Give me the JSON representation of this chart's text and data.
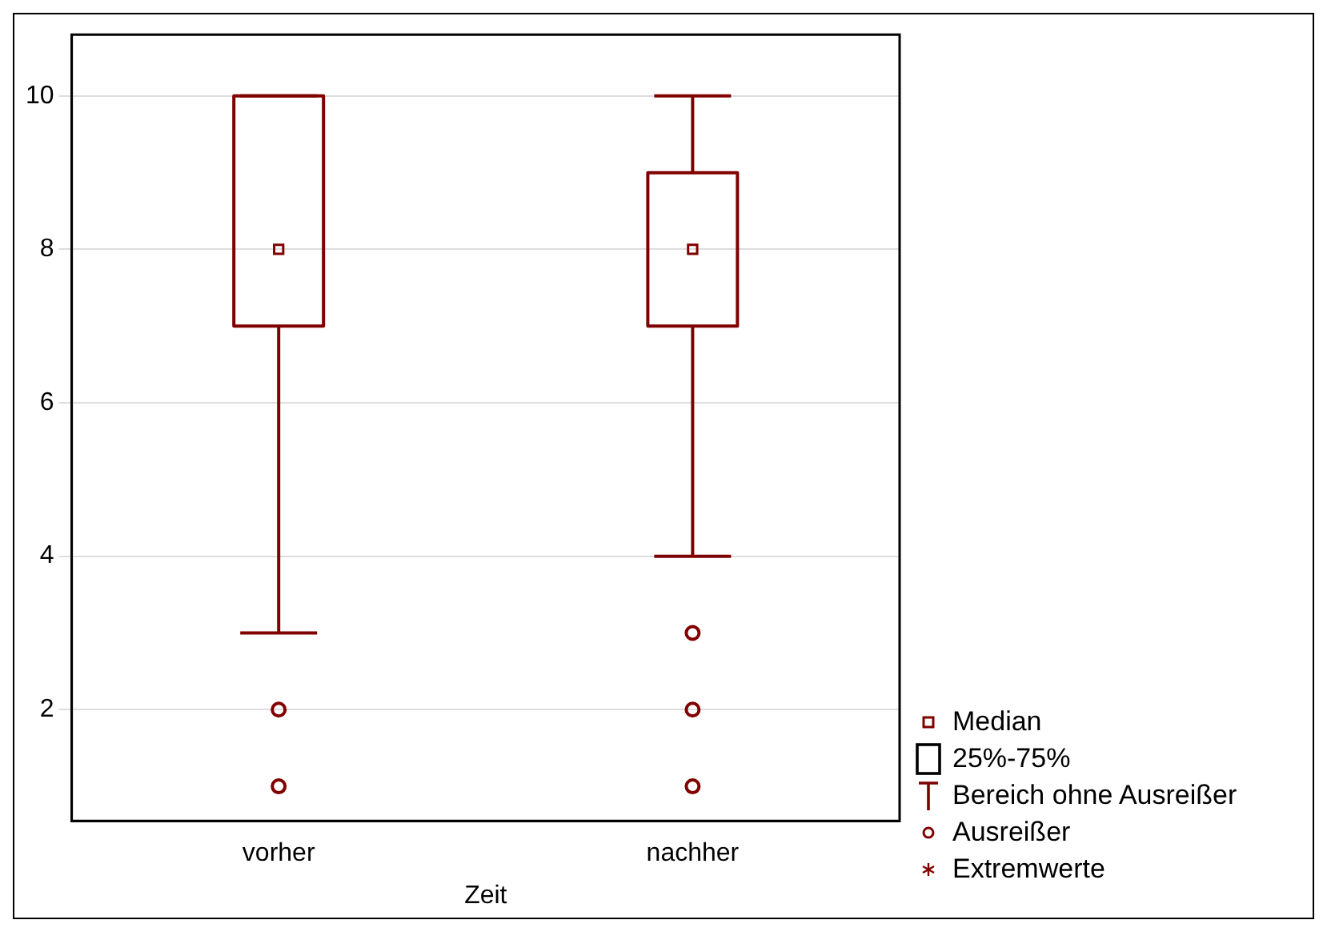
{
  "chart_data": {
    "type": "box",
    "xlabel": "Zeit",
    "categories": [
      "vorher",
      "nachher"
    ],
    "color": "#800000",
    "boxes": [
      {
        "low": 3,
        "q1": 7,
        "median": 8,
        "q3": 10,
        "high": 10,
        "outliers": [
          2,
          1
        ]
      },
      {
        "low": 4,
        "q1": 7,
        "median": 8,
        "q3": 9,
        "high": 10,
        "outliers": [
          3,
          2,
          1
        ]
      }
    ],
    "ylim": [
      0.55,
      10.8
    ],
    "yticks": [
      2,
      4,
      6,
      8,
      10
    ],
    "grid": "y",
    "annotations": [
      "Median",
      "25%-75%",
      "Bereich ohne Ausreißer",
      "Ausreißer",
      "Extremwerte"
    ]
  }
}
